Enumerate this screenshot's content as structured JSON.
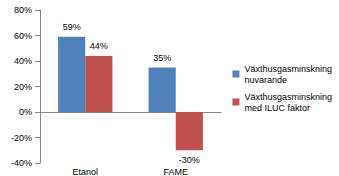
{
  "chart_data": {
    "type": "bar",
    "categories": [
      "Etanol",
      "FAME"
    ],
    "series": [
      {
        "name": "Växthusgasminskning nuvarande",
        "color": "#4f81bd",
        "values": [
          59,
          35
        ],
        "value_labels": [
          "59%",
          "35%"
        ]
      },
      {
        "name": "Växthusgasminskning med ILUC faktor",
        "color": "#c0504d",
        "values": [
          44,
          -30
        ],
        "value_labels": [
          "44%",
          "-30%"
        ]
      }
    ],
    "ylim": [
      -40,
      80
    ],
    "yticks": [
      {
        "value": -40,
        "label": "-40%"
      },
      {
        "value": -20,
        "label": "-20%"
      },
      {
        "value": 0,
        "label": "0%"
      },
      {
        "value": 20,
        "label": "20%"
      },
      {
        "value": 40,
        "label": "40%"
      },
      {
        "value": 60,
        "label": "60%"
      },
      {
        "value": 80,
        "label": "80%"
      }
    ],
    "grid": false,
    "legend": "right",
    "data_labels": true
  }
}
